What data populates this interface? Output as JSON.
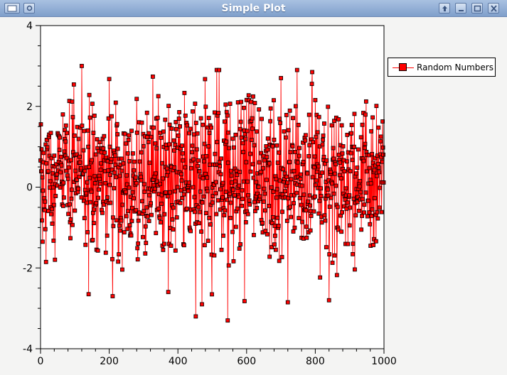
{
  "window": {
    "title": "Simple Plot",
    "buttons": [
      "menu",
      "pin",
      "raise",
      "minimize",
      "maximize",
      "close"
    ]
  },
  "chart_data": {
    "type": "line",
    "marker": "square",
    "n_points": 1000,
    "xlim": [
      0,
      1000
    ],
    "ylim": [
      -4,
      4
    ],
    "xticks": [
      0,
      200,
      400,
      600,
      800,
      1000
    ],
    "yticks": [
      -4,
      -2,
      0,
      2,
      4
    ],
    "xlabel": "",
    "ylabel": "",
    "title": "",
    "grid": false,
    "legend_position": "right",
    "series": [
      {
        "name": "Random Numbers",
        "color": "#ff0000",
        "marker_fill": "#ff0000",
        "marker_edge": "#000000",
        "distribution": "normal",
        "mean": 0.2,
        "std": 0.95,
        "notable_points": [
          [
            120,
            3.0
          ],
          [
            520,
            2.9
          ],
          [
            700,
            2.7
          ],
          [
            140,
            -2.65
          ],
          [
            210,
            -2.7
          ],
          [
            470,
            -2.9
          ],
          [
            545,
            -3.3
          ],
          [
            720,
            -2.85
          ],
          [
            840,
            -2.8
          ]
        ]
      }
    ]
  }
}
